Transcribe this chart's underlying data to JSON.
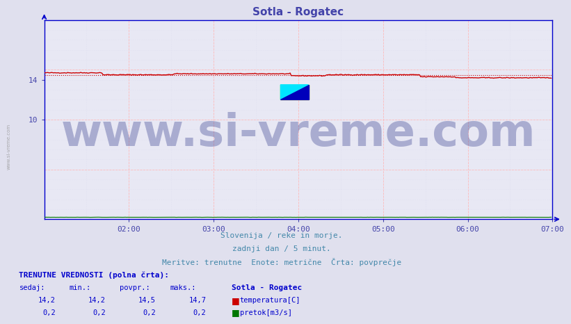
{
  "title": "Sotla - Rogatec",
  "title_color": "#4444aa",
  "bg_color": "#e0e0ee",
  "plot_bg_color": "#e8e8f4",
  "axis_color": "#0000cc",
  "tick_color": "#4444aa",
  "xlabel_color": "#4488aa",
  "xmin": 0,
  "xmax": 432,
  "ymin": 0,
  "ymax": 20,
  "xtick_positions": [
    72,
    144,
    216,
    288,
    360,
    432
  ],
  "xtick_labels": [
    "02:00",
    "03:00",
    "04:00",
    "05:00",
    "06:00",
    "07:00"
  ],
  "ytick_positions": [
    10,
    14
  ],
  "ytick_labels": [
    "10",
    "14"
  ],
  "temp_color": "#cc0000",
  "flow_color": "#007700",
  "watermark_text": "www.si-vreme.com",
  "watermark_color": "#1a237e",
  "watermark_alpha": 0.3,
  "watermark_fontsize": 46,
  "footer_line1": "Slovenija / reke in morje.",
  "footer_line2": "zadnji dan / 5 minut.",
  "footer_line3": "Meritve: trenutne  Enote: metrične  Črta: povprečje",
  "table_header": "TRENUTNE VREDNOSTI (polna črta):",
  "table_col_headers": [
    "sedaj:",
    "min.:",
    "povpr.:",
    "maks.:"
  ],
  "table_station": "Sotla - Rogatec",
  "table_temp_values": [
    "14,2",
    "14,2",
    "14,5",
    "14,7"
  ],
  "table_flow_values": [
    "0,2",
    "0,2",
    "0,2",
    "0,2"
  ],
  "table_temp_label": "temperatura[C]",
  "table_flow_label": "pretok[m3/s]",
  "temp_data_avg": 14.5,
  "flow_data_avg": 0.2,
  "n_points": 432
}
